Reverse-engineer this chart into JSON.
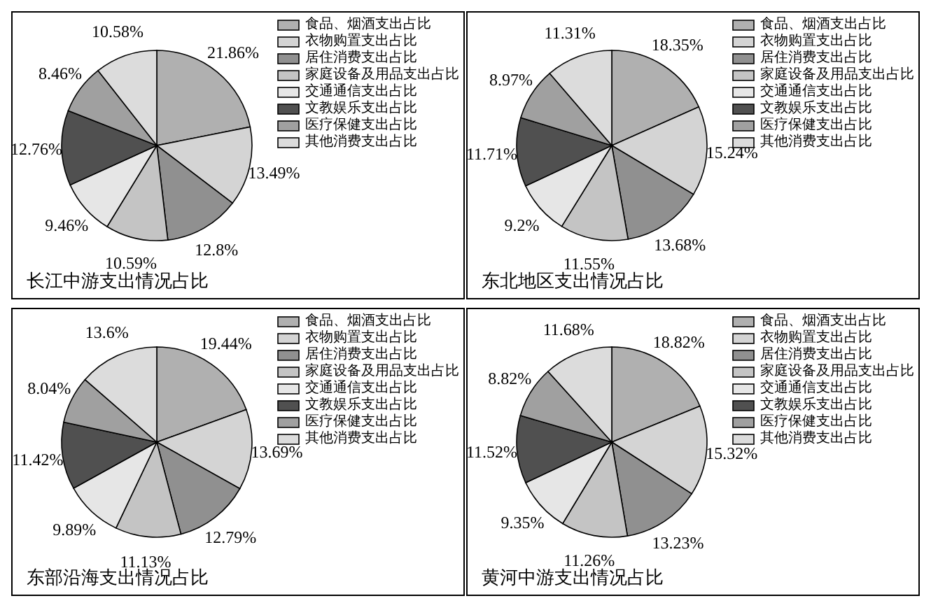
{
  "chart_data": [
    {
      "type": "pie",
      "title": "长江中游支出情况占比",
      "categories": [
        "食品、烟酒支出占比",
        "衣物购置支出占比",
        "居住消费支出占比",
        "家庭设备及用品支出占比",
        "交通通信支出占比",
        "文教娱乐支出占比",
        "医疗保健支出占比",
        "其他消费支出占比"
      ],
      "values": [
        21.86,
        13.49,
        12.8,
        10.59,
        9.46,
        12.76,
        8.46,
        10.58
      ],
      "value_labels": [
        "21.86%",
        "13.49%",
        "12.8%",
        "10.59%",
        "9.46%",
        "12.76%",
        "8.46%",
        "10.58%"
      ],
      "colors": [
        "#b0b0b0",
        "#d4d4d4",
        "#909090",
        "#c4c4c4",
        "#e6e6e6",
        "#505050",
        "#a0a0a0",
        "#dcdcdc"
      ],
      "legend": "top right"
    },
    {
      "type": "pie",
      "title": "东北地区支出情况占比",
      "categories": [
        "食品、烟酒支出占比",
        "衣物购置支出占比",
        "居住消费支出占比",
        "家庭设备及用品支出占比",
        "交通通信支出占比",
        "文教娱乐支出占比",
        "医疗保健支出占比",
        "其他消费支出占比"
      ],
      "values": [
        18.35,
        15.24,
        13.68,
        11.55,
        9.2,
        11.71,
        8.97,
        11.31
      ],
      "value_labels": [
        "18.35%",
        "15.24%",
        "13.68%",
        "11.55%",
        "9.2%",
        "11.71%",
        "8.97%",
        "11.31%"
      ],
      "colors": [
        "#b0b0b0",
        "#d4d4d4",
        "#909090",
        "#c4c4c4",
        "#e6e6e6",
        "#505050",
        "#a0a0a0",
        "#dcdcdc"
      ],
      "legend": "top right"
    },
    {
      "type": "pie",
      "title": "东部沿海支出情况占比",
      "categories": [
        "食品、烟酒支出占比",
        "衣物购置支出占比",
        "居住消费支出占比",
        "家庭设备及用品支出占比",
        "交通通信支出占比",
        "文教娱乐支出占比",
        "医疗保健支出占比",
        "其他消费支出占比"
      ],
      "values": [
        19.44,
        13.69,
        12.79,
        11.13,
        9.89,
        11.42,
        8.04,
        13.6
      ],
      "value_labels": [
        "19.44%",
        "13.69%",
        "12.79%",
        "11.13%",
        "9.89%",
        "11.42%",
        "8.04%",
        "13.6%"
      ],
      "colors": [
        "#b0b0b0",
        "#d4d4d4",
        "#909090",
        "#c4c4c4",
        "#e6e6e6",
        "#505050",
        "#a0a0a0",
        "#dcdcdc"
      ],
      "legend": "top right"
    },
    {
      "type": "pie",
      "title": "黄河中游支出情况占比",
      "categories": [
        "食品、烟酒支出占比",
        "衣物购置支出占比",
        "居住消费支出占比",
        "家庭设备及用品支出占比",
        "交通通信支出占比",
        "文教娱乐支出占比",
        "医疗保健支出占比",
        "其他消费支出占比"
      ],
      "values": [
        18.82,
        15.32,
        13.23,
        11.26,
        9.35,
        11.52,
        8.82,
        11.68
      ],
      "value_labels": [
        "18.82%",
        "15.32%",
        "13.23%",
        "11.26%",
        "9.35%",
        "11.52%",
        "8.82%",
        "11.68%"
      ],
      "colors": [
        "#b0b0b0",
        "#d4d4d4",
        "#909090",
        "#c4c4c4",
        "#e6e6e6",
        "#505050",
        "#a0a0a0",
        "#dcdcdc"
      ],
      "legend": "top right"
    }
  ]
}
